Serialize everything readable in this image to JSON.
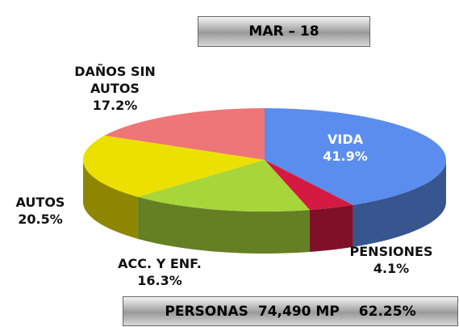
{
  "chart_data": {
    "type": "pie",
    "title": "MAR – 18",
    "categories": [
      "VIDA",
      "PENSIONES",
      "ACC. Y ENF.",
      "AUTOS",
      "DAÑOS SIN AUTOS"
    ],
    "values": [
      41.9,
      4.1,
      16.3,
      20.5,
      17.2
    ],
    "value_labels": [
      "41.9%",
      "4.1%",
      "16.3%",
      "20.5%",
      "17.2%"
    ],
    "colors": [
      "#5b8def",
      "#d41a40",
      "#a6d63a",
      "#ece000",
      "#ef7676"
    ],
    "footer": {
      "label": "PERSONAS",
      "amount": "74,490 MP",
      "share": "62.25%"
    }
  }
}
